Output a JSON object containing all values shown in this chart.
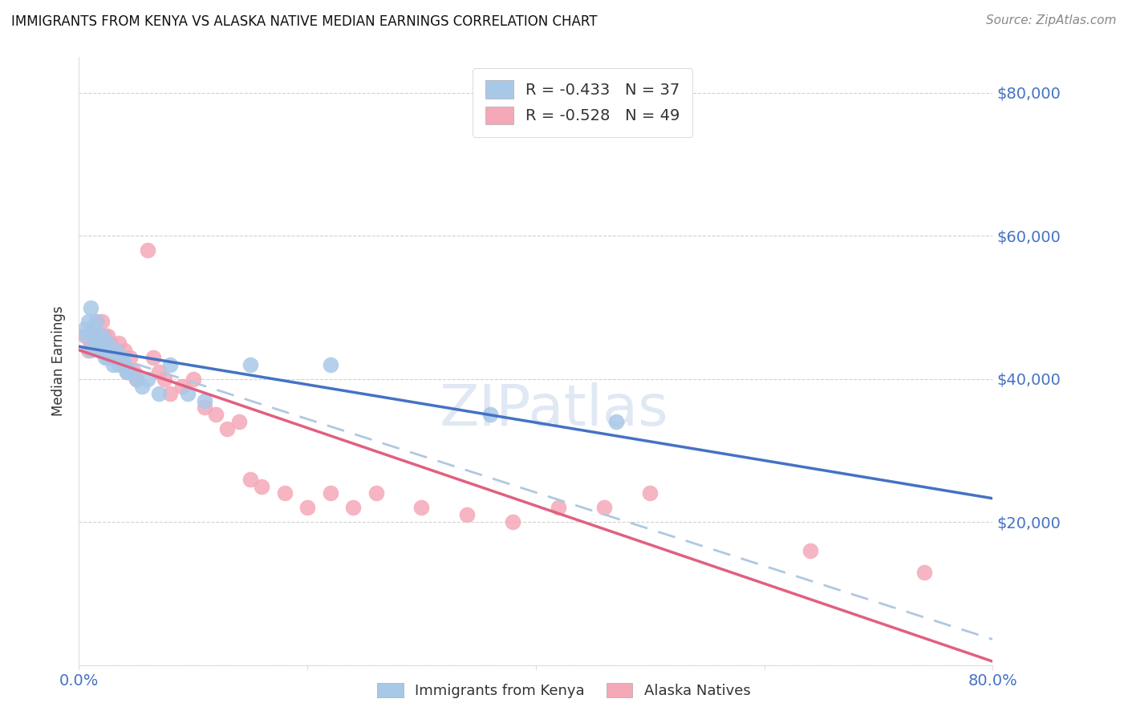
{
  "title": "IMMIGRANTS FROM KENYA VS ALASKA NATIVE MEDIAN EARNINGS CORRELATION CHART",
  "source": "Source: ZipAtlas.com",
  "ylabel": "Median Earnings",
  "xlim": [
    0.0,
    0.8
  ],
  "ylim": [
    0,
    85000
  ],
  "yticks": [
    0,
    20000,
    40000,
    60000,
    80000
  ],
  "xticks": [
    0.0,
    0.2,
    0.4,
    0.6,
    0.8
  ],
  "xtick_labels": [
    "0.0%",
    "",
    "",
    "",
    "80.0%"
  ],
  "ytick_labels": [
    "",
    "$20,000",
    "$40,000",
    "$60,000",
    "$80,000"
  ],
  "legend_labels": [
    "Immigrants from Kenya",
    "Alaska Natives"
  ],
  "legend_r_text": [
    "R = -0.433   N = 37",
    "R = -0.528   N = 49"
  ],
  "color_kenya": "#a8c8e8",
  "color_alaska": "#f4a8b8",
  "color_kenya_line": "#4472c4",
  "color_alaska_line": "#e06080",
  "color_dashed": "#b0c8e0",
  "tick_color": "#4472c4",
  "grid_color": "#cccccc",
  "kenya_x": [
    0.005,
    0.007,
    0.008,
    0.01,
    0.01,
    0.012,
    0.013,
    0.015,
    0.015,
    0.017,
    0.018,
    0.02,
    0.02,
    0.022,
    0.023,
    0.025,
    0.025,
    0.027,
    0.03,
    0.03,
    0.032,
    0.035,
    0.038,
    0.04,
    0.042,
    0.045,
    0.05,
    0.055,
    0.06,
    0.07,
    0.08,
    0.095,
    0.11,
    0.15,
    0.22,
    0.36,
    0.47
  ],
  "kenya_y": [
    47000,
    46000,
    48000,
    50000,
    44000,
    47000,
    46000,
    48000,
    45000,
    46000,
    44000,
    46000,
    45000,
    44000,
    43000,
    45000,
    43000,
    44000,
    43000,
    42000,
    44000,
    42000,
    43000,
    42000,
    41000,
    41000,
    40000,
    39000,
    40000,
    38000,
    42000,
    38000,
    37000,
    42000,
    42000,
    35000,
    34000
  ],
  "alaska_x": [
    0.005,
    0.008,
    0.01,
    0.012,
    0.013,
    0.015,
    0.017,
    0.018,
    0.02,
    0.022,
    0.023,
    0.025,
    0.027,
    0.028,
    0.03,
    0.032,
    0.035,
    0.038,
    0.04,
    0.042,
    0.045,
    0.048,
    0.05,
    0.06,
    0.065,
    0.07,
    0.075,
    0.08,
    0.09,
    0.1,
    0.11,
    0.12,
    0.13,
    0.14,
    0.15,
    0.16,
    0.18,
    0.2,
    0.22,
    0.24,
    0.26,
    0.3,
    0.34,
    0.38,
    0.42,
    0.46,
    0.5,
    0.64,
    0.74
  ],
  "alaska_y": [
    46000,
    44000,
    45000,
    47000,
    46000,
    48000,
    45000,
    46000,
    48000,
    46000,
    44000,
    46000,
    43000,
    45000,
    44000,
    43000,
    45000,
    42000,
    44000,
    41000,
    43000,
    41000,
    40000,
    58000,
    43000,
    41000,
    40000,
    38000,
    39000,
    40000,
    36000,
    35000,
    33000,
    34000,
    26000,
    25000,
    24000,
    22000,
    24000,
    22000,
    24000,
    22000,
    21000,
    20000,
    22000,
    22000,
    24000,
    16000,
    13000
  ]
}
